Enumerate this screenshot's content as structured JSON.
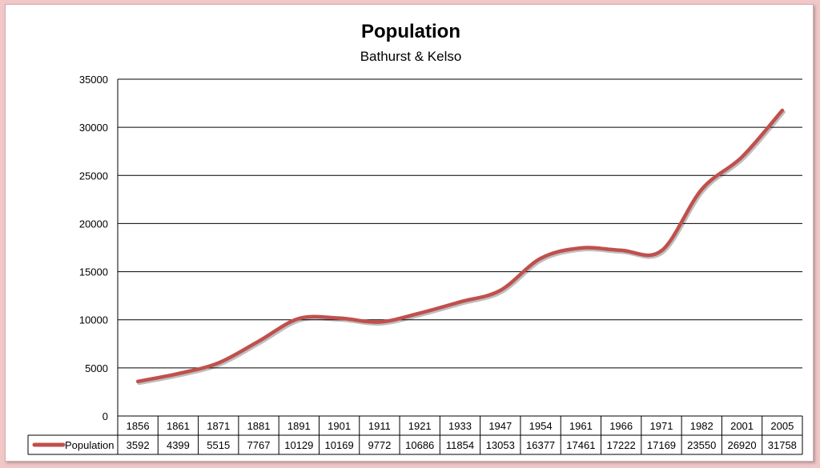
{
  "chart_data": {
    "type": "line",
    "title": "Population",
    "subtitle": "Bathurst & Kelso",
    "categories": [
      "1856",
      "1861",
      "1871",
      "1881",
      "1891",
      "1901",
      "1911",
      "1921",
      "1933",
      "1947",
      "1954",
      "1961",
      "1966",
      "1971",
      "1982",
      "2001",
      "2005"
    ],
    "series": [
      {
        "name": "Population",
        "values": [
          3592,
          4399,
          5515,
          7767,
          10129,
          10169,
          9772,
          10686,
          11854,
          13053,
          16377,
          17461,
          17222,
          17169,
          23550,
          26920,
          31758
        ]
      }
    ],
    "yticks": [
      0,
      5000,
      10000,
      15000,
      20000,
      25000,
      30000,
      35000
    ],
    "ylim": [
      0,
      35000
    ],
    "grid": true,
    "legend": "data table",
    "smooth": true,
    "colors": {
      "line": "#c0504d",
      "grid": "#000000",
      "frame": "#f1c7c7"
    }
  }
}
